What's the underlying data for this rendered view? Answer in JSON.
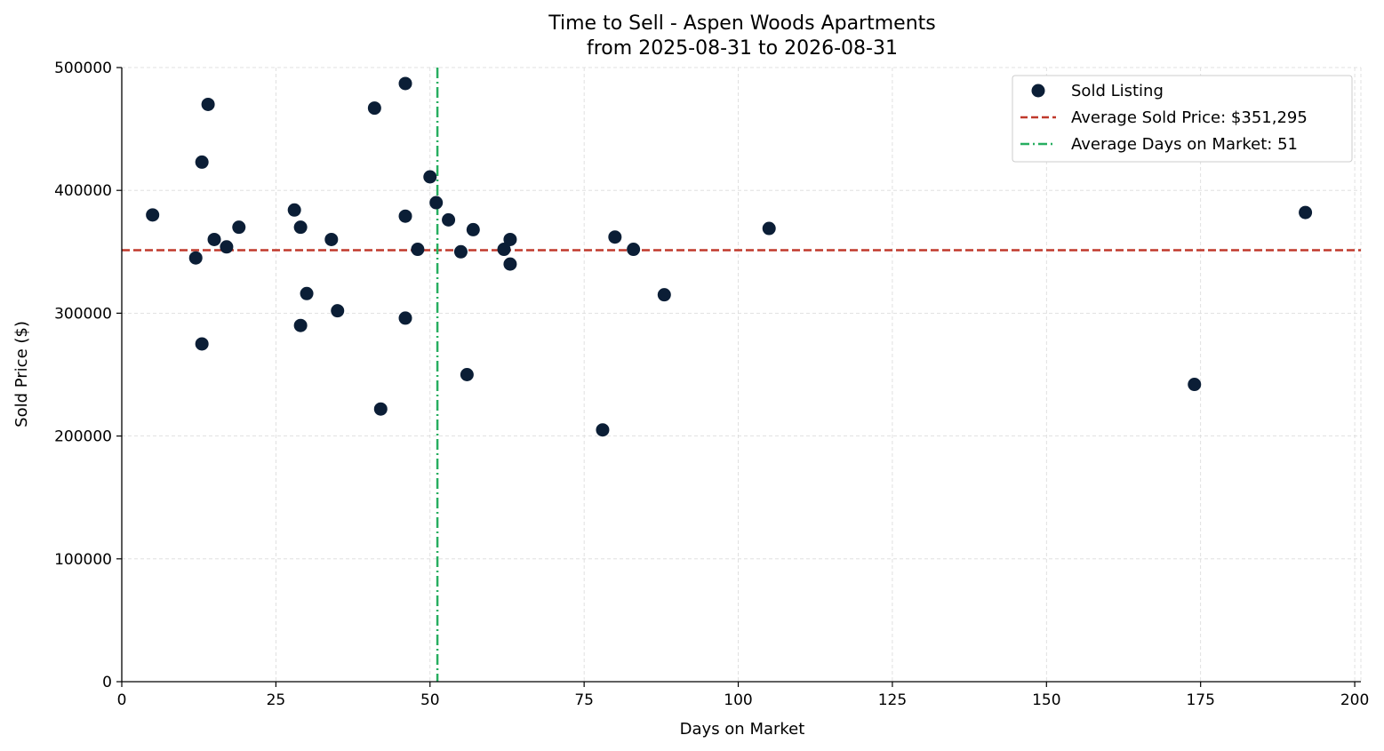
{
  "chart_data": {
    "type": "scatter",
    "title": "Time to Sell - Aspen Woods Apartments",
    "subtitle": "from 2025-08-31 to 2026-08-31",
    "xlabel": "Days on Market",
    "ylabel": "Sold Price ($)",
    "xlim": [
      0,
      201
    ],
    "ylim": [
      0,
      500000
    ],
    "xticks": [
      0,
      25,
      50,
      75,
      100,
      125,
      150,
      175,
      200
    ],
    "yticks": [
      0,
      100000,
      200000,
      300000,
      400000,
      500000
    ],
    "grid": true,
    "legend_position": "top-right",
    "colors": {
      "points": "#0b1e36",
      "avg_price": "#c0392b",
      "avg_days": "#27ae60"
    },
    "series": [
      {
        "name": "Sold Listing",
        "points": [
          {
            "x": 5,
            "y": 380000
          },
          {
            "x": 12,
            "y": 345000
          },
          {
            "x": 13,
            "y": 423000
          },
          {
            "x": 13,
            "y": 275000
          },
          {
            "x": 14,
            "y": 470000
          },
          {
            "x": 15,
            "y": 360000
          },
          {
            "x": 17,
            "y": 354000
          },
          {
            "x": 19,
            "y": 370000
          },
          {
            "x": 28,
            "y": 384000
          },
          {
            "x": 29,
            "y": 370000
          },
          {
            "x": 29,
            "y": 290000
          },
          {
            "x": 30,
            "y": 316000
          },
          {
            "x": 34,
            "y": 360000
          },
          {
            "x": 35,
            "y": 302000
          },
          {
            "x": 41,
            "y": 467000
          },
          {
            "x": 42,
            "y": 222000
          },
          {
            "x": 46,
            "y": 487000
          },
          {
            "x": 46,
            "y": 379000
          },
          {
            "x": 46,
            "y": 296000
          },
          {
            "x": 48,
            "y": 352000
          },
          {
            "x": 50,
            "y": 411000
          },
          {
            "x": 51,
            "y": 390000
          },
          {
            "x": 53,
            "y": 376000
          },
          {
            "x": 55,
            "y": 350000
          },
          {
            "x": 56,
            "y": 250000
          },
          {
            "x": 57,
            "y": 368000
          },
          {
            "x": 62,
            "y": 352000
          },
          {
            "x": 63,
            "y": 360000
          },
          {
            "x": 63,
            "y": 340000
          },
          {
            "x": 78,
            "y": 205000
          },
          {
            "x": 80,
            "y": 362000
          },
          {
            "x": 83,
            "y": 352000
          },
          {
            "x": 88,
            "y": 315000
          },
          {
            "x": 105,
            "y": 369000
          },
          {
            "x": 174,
            "y": 242000
          },
          {
            "x": 192,
            "y": 382000
          }
        ]
      }
    ],
    "reference_lines": {
      "avg_price": {
        "label": "Average Sold Price: $351,295",
        "value": 351295
      },
      "avg_days": {
        "label": "Average Days on Market: 51",
        "value": 51.2
      }
    }
  }
}
